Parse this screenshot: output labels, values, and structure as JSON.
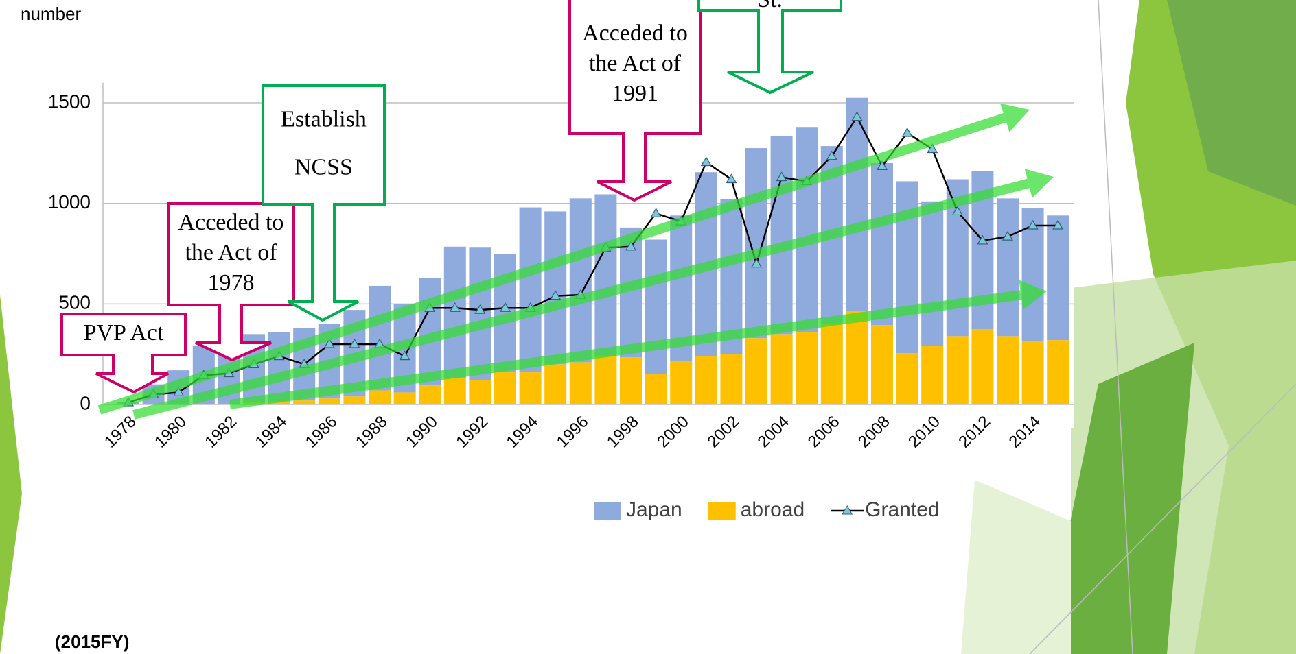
{
  "chart_data": {
    "type": "stacked-bar-line",
    "y_axis_label": "number",
    "note": "(2015FY)",
    "categories": [
      "1978",
      null,
      "1980",
      null,
      "1982",
      null,
      "1984",
      null,
      "1986",
      null,
      "1988",
      null,
      "1990",
      null,
      "1992",
      null,
      "1994",
      null,
      "1996",
      null,
      "1998",
      null,
      "2000",
      null,
      "2002",
      null,
      "2004",
      null,
      "2006",
      null,
      "2008",
      null,
      "2010",
      null,
      "2012",
      null,
      "2014",
      null
    ],
    "series": [
      {
        "name": "Japan",
        "type": "bar",
        "color": "#8faadc",
        "values": [
          10,
          100,
          170,
          290,
          280,
          340,
          345,
          360,
          370,
          430,
          520,
          440,
          535,
          655,
          660,
          590,
          820,
          760,
          815,
          805,
          645,
          670,
          725,
          915,
          770,
          945,
          985,
          1020,
          885,
          1060,
          805,
          855,
          720,
          780,
          785,
          685,
          660,
          620
        ]
      },
      {
        "name": "abroad",
        "type": "bar",
        "color": "#ffc000",
        "values": [
          0,
          0,
          0,
          0,
          0,
          10,
          15,
          20,
          30,
          40,
          70,
          60,
          95,
          130,
          120,
          160,
          160,
          200,
          210,
          240,
          235,
          150,
          215,
          240,
          250,
          330,
          350,
          360,
          400,
          465,
          395,
          255,
          290,
          340,
          375,
          340,
          315,
          320
        ]
      },
      {
        "name": "Granted",
        "type": "line",
        "color": "#000000",
        "marker_color": "#7fc6d6",
        "values": [
          10,
          50,
          60,
          145,
          155,
          200,
          240,
          200,
          300,
          300,
          300,
          240,
          480,
          480,
          470,
          480,
          480,
          540,
          545,
          780,
          785,
          950,
          910,
          1205,
          1120,
          700,
          1130,
          1110,
          1235,
          1430,
          1185,
          1350,
          1270,
          960,
          815,
          835,
          890,
          890
        ]
      }
    ],
    "stack_order": [
      "abroad",
      "Japan"
    ],
    "ylim": [
      0,
      1600
    ],
    "yticks": [
      0,
      500,
      1000,
      1500
    ],
    "grid": true,
    "legend": "bottom-right",
    "annotations": [
      {
        "lines": [
          "PVP Act"
        ],
        "color": "#cc0066"
      },
      {
        "lines": [
          "Acceded to",
          "the Act of",
          "1978"
        ],
        "color": "#cc0066"
      },
      {
        "lines": [
          "Establish",
          "NCSS"
        ],
        "color": "#00b050"
      },
      {
        "lines": [
          "Acceded to",
          "the Act of",
          "1991"
        ],
        "color": "#cc0066"
      },
      {
        "lines": [
          "St."
        ],
        "color": "#00b050"
      }
    ]
  }
}
